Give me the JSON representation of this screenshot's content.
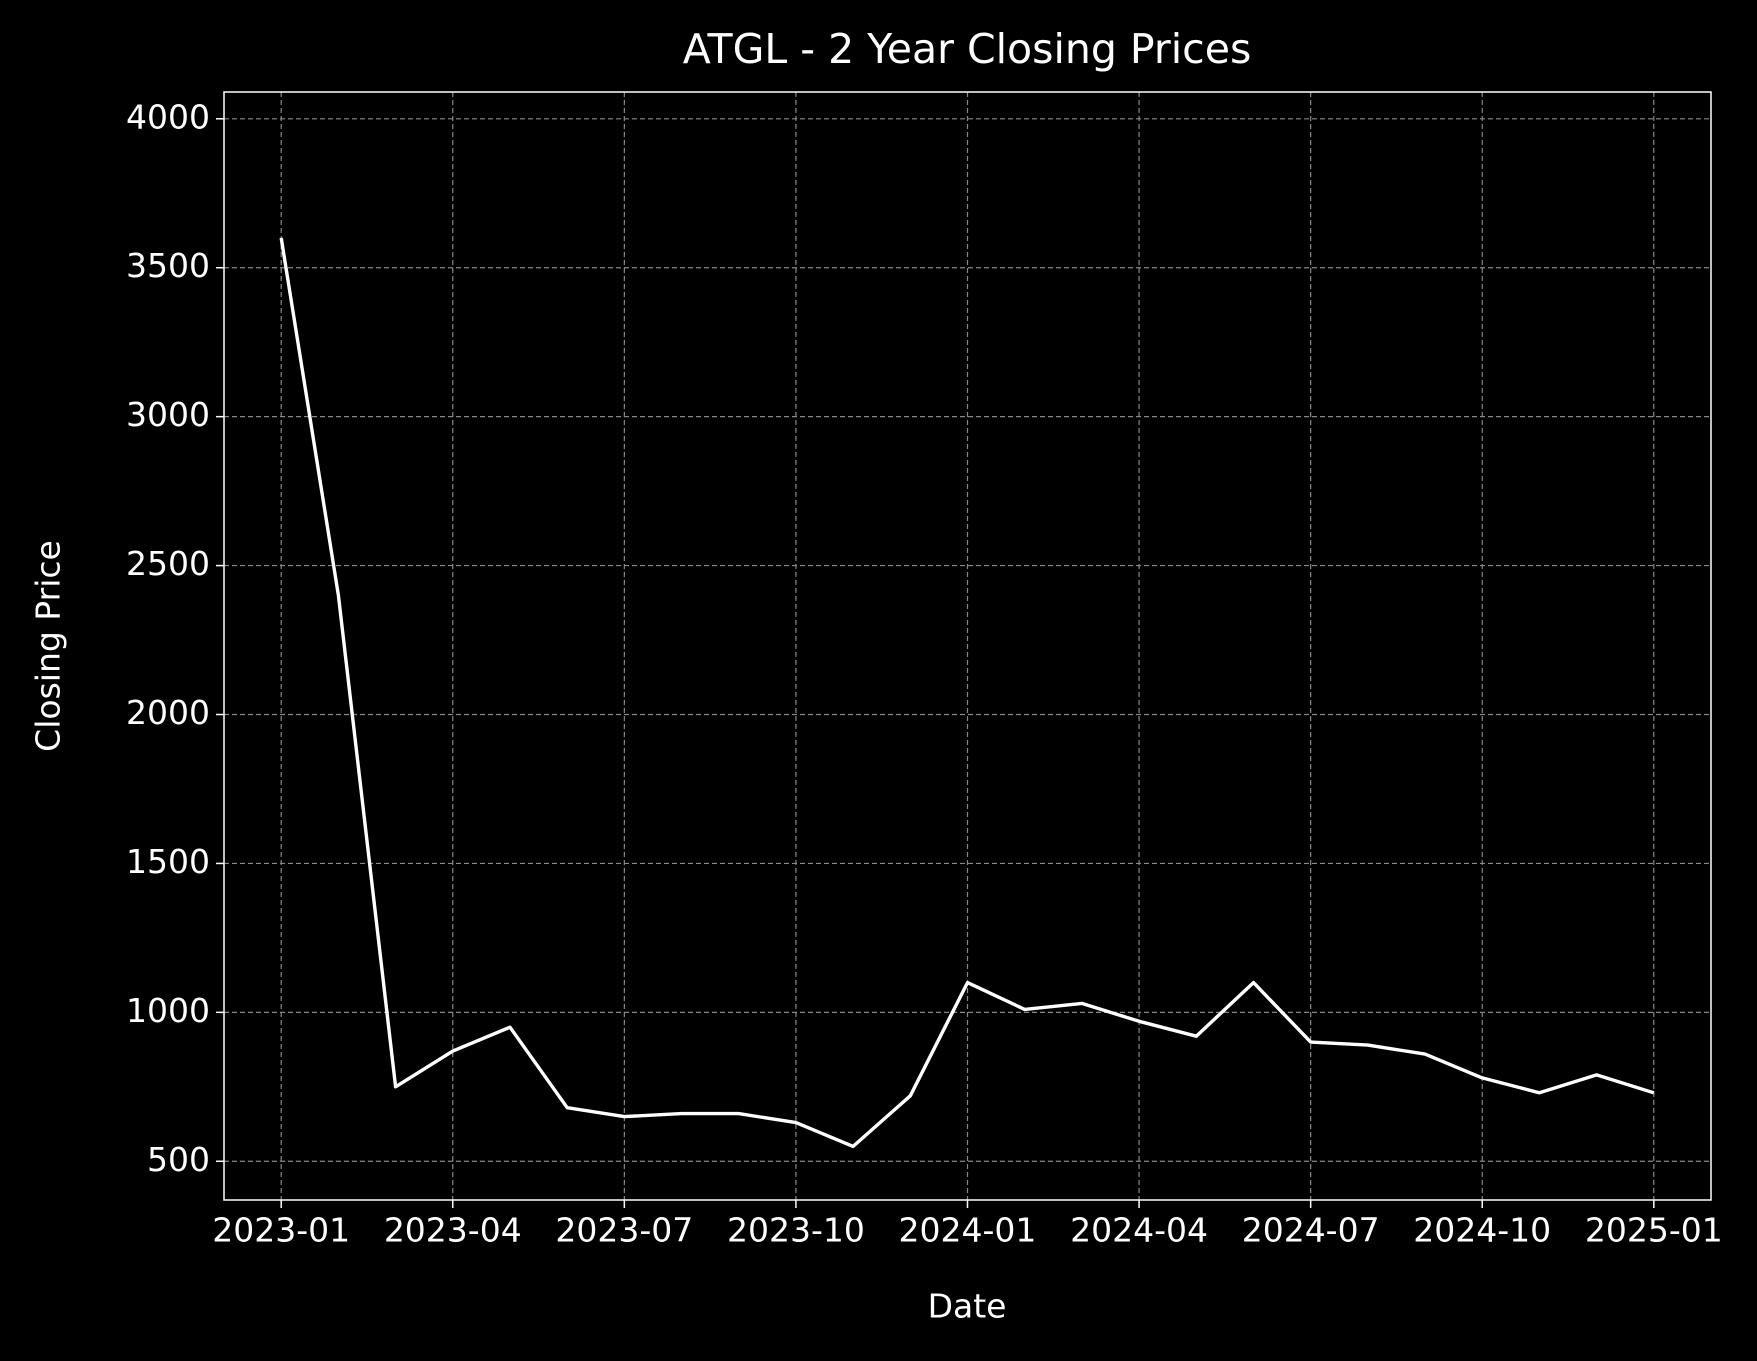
{
  "chart_data": {
    "type": "line",
    "title": "ATGL - 2 Year Closing Prices",
    "x_label": "Date",
    "y_label": "Closing Price",
    "x": [
      "2023-01",
      "2023-02",
      "2023-03",
      "2023-04",
      "2023-05",
      "2023-06",
      "2023-07",
      "2023-08",
      "2023-09",
      "2023-10",
      "2023-11",
      "2023-12",
      "2024-01",
      "2024-02",
      "2024-03",
      "2024-04",
      "2024-05",
      "2024-06",
      "2024-07",
      "2024-08",
      "2024-09",
      "2024-10",
      "2024-11",
      "2024-12",
      "2025-01"
    ],
    "series": [
      {
        "name": "Closing Price",
        "color": "#ffffff",
        "values": [
          3600,
          2400,
          750,
          870,
          950,
          680,
          650,
          660,
          660,
          630,
          550,
          720,
          1100,
          1010,
          1030,
          970,
          920,
          1100,
          900,
          890,
          860,
          780,
          730,
          790,
          730
        ]
      }
    ],
    "xlim": [
      "2022-12",
      "2025-02"
    ],
    "xticks": [
      "2023-01",
      "2023-04",
      "2023-07",
      "2023-10",
      "2024-01",
      "2024-04",
      "2024-07",
      "2024-10",
      "2025-01"
    ],
    "ylim": [
      370,
      4090
    ],
    "yticks": [
      500,
      1000,
      1500,
      2000,
      2500,
      3000,
      3500,
      4000
    ],
    "grid": true
  }
}
